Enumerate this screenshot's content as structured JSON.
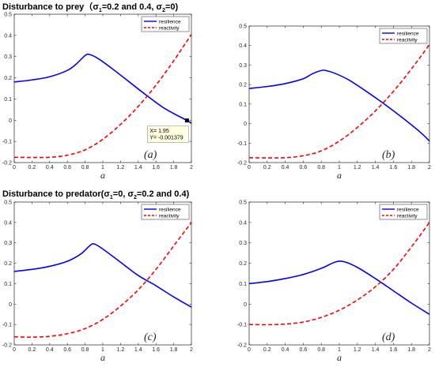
{
  "colors": {
    "resilience": "#0000ff",
    "reactivity": "#ff0000",
    "tooltip_bg": "#ffffe1"
  },
  "chart_data": [
    {
      "panel": "(a)",
      "type": "line",
      "title": "",
      "title_parts": [
        "Disturbance to prey（",
        "σ",
        "1",
        "=0.2 and 0.4, ",
        "σ",
        "2",
        "=0)"
      ],
      "xlabel": "a",
      "ylabel": "",
      "xlim": [
        0,
        2
      ],
      "ylim": [
        -0.2,
        0.5
      ],
      "xticks": [
        "0",
        "0.2",
        "0.4",
        "0.6",
        "0.8",
        "1",
        "1.2",
        "1.4",
        "1.6",
        "1.8",
        "2"
      ],
      "yticks": [
        "-0.2",
        "-0.1",
        "0",
        "0.1",
        "0.2",
        "0.3",
        "0.4",
        "0.5"
      ],
      "grid": false,
      "legend": "top-right",
      "series": [
        {
          "name": "resilience",
          "style": "solid",
          "x": [
            0,
            0.2,
            0.4,
            0.6,
            0.7,
            0.8,
            0.85,
            0.95,
            1.1,
            1.3,
            1.5,
            1.7,
            1.95,
            2.0
          ],
          "y": [
            0.18,
            0.19,
            0.205,
            0.235,
            0.265,
            0.305,
            0.31,
            0.29,
            0.245,
            0.18,
            0.115,
            0.055,
            -0.001379,
            -0.015
          ]
        },
        {
          "name": "reactivity",
          "style": "dashed",
          "x": [
            0,
            0.2,
            0.4,
            0.6,
            0.8,
            1.0,
            1.2,
            1.4,
            1.6,
            1.8,
            2.0
          ],
          "y": [
            -0.175,
            -0.176,
            -0.175,
            -0.165,
            -0.14,
            -0.09,
            -0.02,
            0.065,
            0.165,
            0.28,
            0.405
          ]
        }
      ],
      "datatip": {
        "x": 1.95,
        "y": -0.001379,
        "label_x": "X= 1.95",
        "label_y": "Y= -0.001379"
      }
    },
    {
      "panel": "(b)",
      "type": "line",
      "title": "",
      "xlabel": "a",
      "ylabel": "",
      "xlim": [
        0,
        2
      ],
      "ylim": [
        -0.2,
        0.5
      ],
      "xticks": [
        "0",
        "0.2",
        "0.4",
        "0.6",
        "0.8",
        "1",
        "1.2",
        "1.4",
        "1.6",
        "1.8",
        "2"
      ],
      "yticks": [
        "-0.2",
        "-0.1",
        "0",
        "0.1",
        "0.2",
        "0.3",
        "0.4",
        "0.5"
      ],
      "grid": false,
      "legend": "top-right",
      "series": [
        {
          "name": "resilience",
          "style": "solid",
          "x": [
            0,
            0.2,
            0.4,
            0.6,
            0.7,
            0.8,
            0.85,
            0.95,
            1.1,
            1.3,
            1.5,
            1.7,
            1.9,
            2.0
          ],
          "y": [
            0.18,
            0.19,
            0.205,
            0.23,
            0.255,
            0.272,
            0.272,
            0.258,
            0.225,
            0.165,
            0.1,
            0.03,
            -0.045,
            -0.09
          ]
        },
        {
          "name": "reactivity",
          "style": "dashed",
          "x": [
            0,
            0.2,
            0.4,
            0.6,
            0.8,
            1.0,
            1.2,
            1.4,
            1.6,
            1.8,
            2.0
          ],
          "y": [
            -0.175,
            -0.176,
            -0.175,
            -0.165,
            -0.14,
            -0.09,
            -0.02,
            0.065,
            0.165,
            0.28,
            0.405
          ]
        }
      ]
    },
    {
      "panel": "(c)",
      "type": "line",
      "title": "",
      "title_parts": [
        "Disturbance to predator(",
        "σ",
        "1",
        "=0, ",
        "σ",
        "2",
        "=0.2 and 0.4)"
      ],
      "xlabel": "a",
      "ylabel": "",
      "xlim": [
        0,
        2
      ],
      "ylim": [
        -0.2,
        0.5
      ],
      "xticks": [
        "0",
        "0.2",
        "0.4",
        "0.6",
        "0.8",
        "1",
        "1.2",
        "1.4",
        "1.6",
        "1.8",
        "2"
      ],
      "yticks": [
        "-0.2",
        "-0.1",
        "0",
        "0.1",
        "0.2",
        "0.3",
        "0.4",
        "0.5"
      ],
      "grid": false,
      "legend": "top-right",
      "series": [
        {
          "name": "resilience",
          "style": "solid",
          "x": [
            0,
            0.2,
            0.4,
            0.6,
            0.75,
            0.85,
            0.9,
            1.0,
            1.2,
            1.4,
            1.6,
            1.8,
            2.0
          ],
          "y": [
            0.16,
            0.17,
            0.185,
            0.21,
            0.245,
            0.285,
            0.295,
            0.27,
            0.205,
            0.14,
            0.09,
            0.035,
            -0.015
          ]
        },
        {
          "name": "reactivity",
          "style": "dashed",
          "x": [
            0,
            0.2,
            0.4,
            0.6,
            0.8,
            1.0,
            1.2,
            1.4,
            1.6,
            1.8,
            2.0
          ],
          "y": [
            -0.16,
            -0.162,
            -0.158,
            -0.145,
            -0.12,
            -0.075,
            -0.01,
            0.07,
            0.17,
            0.285,
            0.4
          ]
        }
      ]
    },
    {
      "panel": "(d)",
      "type": "line",
      "title": "",
      "xlabel": "a",
      "ylabel": "",
      "xlim": [
        0,
        2
      ],
      "ylim": [
        -0.2,
        0.5
      ],
      "xticks": [
        "0",
        "0.2",
        "0.4",
        "0.6",
        "0.8",
        "1",
        "1.2",
        "1.4",
        "1.6",
        "1.8",
        "2"
      ],
      "yticks": [
        "-0.2",
        "-0.1",
        "0",
        "0.1",
        "0.2",
        "0.3",
        "0.4",
        "0.5"
      ],
      "grid": false,
      "legend": "top-right",
      "series": [
        {
          "name": "resilience",
          "style": "solid",
          "x": [
            0,
            0.2,
            0.4,
            0.6,
            0.8,
            0.95,
            1.05,
            1.2,
            1.4,
            1.6,
            1.8,
            2.0
          ],
          "y": [
            0.1,
            0.11,
            0.125,
            0.145,
            0.175,
            0.205,
            0.208,
            0.18,
            0.125,
            0.065,
            0.005,
            -0.05
          ]
        },
        {
          "name": "reactivity",
          "style": "dashed",
          "x": [
            0,
            0.2,
            0.4,
            0.6,
            0.8,
            1.0,
            1.2,
            1.4,
            1.6,
            1.8,
            2.0
          ],
          "y": [
            -0.1,
            -0.101,
            -0.098,
            -0.088,
            -0.065,
            -0.03,
            0.02,
            0.085,
            0.17,
            0.28,
            0.4
          ]
        }
      ]
    }
  ]
}
